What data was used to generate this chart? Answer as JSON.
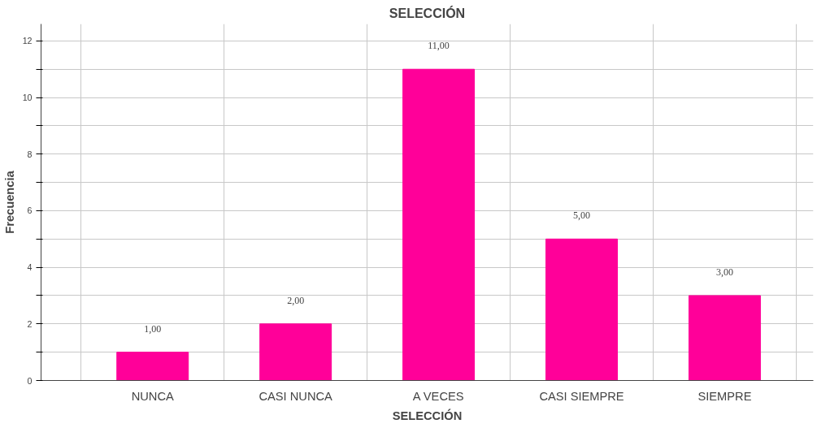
{
  "chart_data": {
    "type": "bar",
    "title": "SELECCIÓN",
    "xlabel": "SELECCIÓN",
    "ylabel": "Frecuencia",
    "categories": [
      "NUNCA",
      "CASI NUNCA",
      "A VECES",
      "CASI SIEMPRE",
      "SIEMPRE"
    ],
    "values": [
      1,
      2,
      11,
      5,
      3
    ],
    "value_labels": [
      "1,00",
      "2,00",
      "11,00",
      "5,00",
      "3,00"
    ],
    "color": "#ff0099",
    "ylim": [
      0,
      12.6
    ],
    "yticks": [
      0,
      {
        "value": 1,
        "label": null
      },
      2,
      {
        "value": 3,
        "label": null
      },
      4,
      {
        "value": 5,
        "label": null
      },
      6,
      {
        "value": 7,
        "label": null
      },
      8,
      {
        "value": 9,
        "label": null
      },
      10,
      {
        "value": 11,
        "label": null
      },
      12
    ],
    "grid": true
  }
}
